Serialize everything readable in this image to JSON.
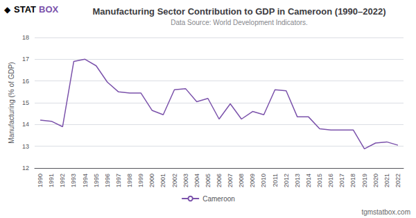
{
  "chart_data": {
    "type": "line",
    "title": "Manufacturing Sector Contribution to GDP in Cameroon (1990–2022)",
    "subtitle": "Data Source: World Development Indicators.",
    "ylabel": "Manufacturing (% of GDP)",
    "x": [
      1990,
      1991,
      1992,
      1993,
      1994,
      1995,
      1996,
      1997,
      1998,
      1999,
      2000,
      2001,
      2002,
      2003,
      2004,
      2005,
      2006,
      2007,
      2008,
      2009,
      2010,
      2011,
      2012,
      2013,
      2014,
      2015,
      2016,
      2017,
      2018,
      2019,
      2020,
      2021,
      2022
    ],
    "series": [
      {
        "name": "Cameroon",
        "color": "#7b52ab",
        "values": [
          14.2,
          14.15,
          13.9,
          16.9,
          17.0,
          16.7,
          15.95,
          15.5,
          15.45,
          15.45,
          14.65,
          14.45,
          15.6,
          15.65,
          15.05,
          15.2,
          14.25,
          14.95,
          14.25,
          14.6,
          14.45,
          15.6,
          15.55,
          14.35,
          14.35,
          13.8,
          13.75,
          13.75,
          13.75,
          12.88,
          13.15,
          13.2,
          13.05
        ]
      }
    ],
    "xlim": [
      1989.5,
      2022.5
    ],
    "xticks": [
      1990,
      1991,
      1992,
      1993,
      1994,
      1995,
      1996,
      1997,
      1998,
      1999,
      2000,
      2001,
      2002,
      2003,
      2004,
      2005,
      2006,
      2007,
      2008,
      2009,
      2010,
      2011,
      2012,
      2013,
      2014,
      2015,
      2016,
      2017,
      2018,
      2019,
      2020,
      2021,
      2022
    ],
    "ylim": [
      12,
      18
    ],
    "yticks": [
      12,
      13,
      14,
      15,
      16,
      17,
      18
    ],
    "grid": true,
    "legend": "bottom",
    "annotations": [
      "◆",
      "STAT",
      "BOX",
      "tgmstatbox.com"
    ]
  }
}
